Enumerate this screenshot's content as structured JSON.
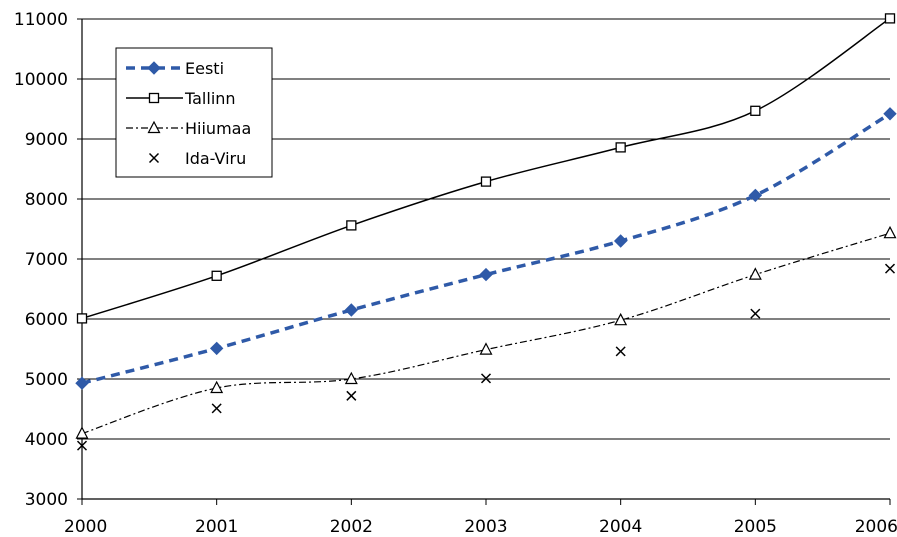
{
  "chart_data": {
    "type": "line",
    "title": "",
    "xlabel": "",
    "ylabel": "",
    "x": [
      2000,
      2001,
      2002,
      2003,
      2004,
      2005,
      2006
    ],
    "ylim": [
      3000,
      11000
    ],
    "yticks": [
      3000,
      4000,
      5000,
      6000,
      7000,
      8000,
      9000,
      10000,
      11000
    ],
    "grid": "horizontal",
    "legend": "top-left",
    "series": [
      {
        "name": "Eesti",
        "values": [
          4930,
          5510,
          6150,
          6740,
          7300,
          8060,
          9420
        ],
        "color": "#2f5aa8",
        "line": "dashed-bold",
        "marker": "diamond-filled"
      },
      {
        "name": "Tallinn",
        "values": [
          6010,
          6720,
          7560,
          8290,
          8860,
          9470,
          11010
        ],
        "color": "#000000",
        "line": "solid",
        "marker": "square-open"
      },
      {
        "name": "Hiiumaa",
        "values": [
          4090,
          4850,
          5000,
          5490,
          5980,
          6740,
          7430
        ],
        "color": "#000000",
        "line": "dash-dot",
        "marker": "triangle-open"
      },
      {
        "name": "Ida-Viru",
        "values": [
          3890,
          4510,
          4720,
          5010,
          5460,
          6090,
          6840
        ],
        "color": "#000000",
        "line": "none",
        "marker": "x"
      }
    ]
  }
}
